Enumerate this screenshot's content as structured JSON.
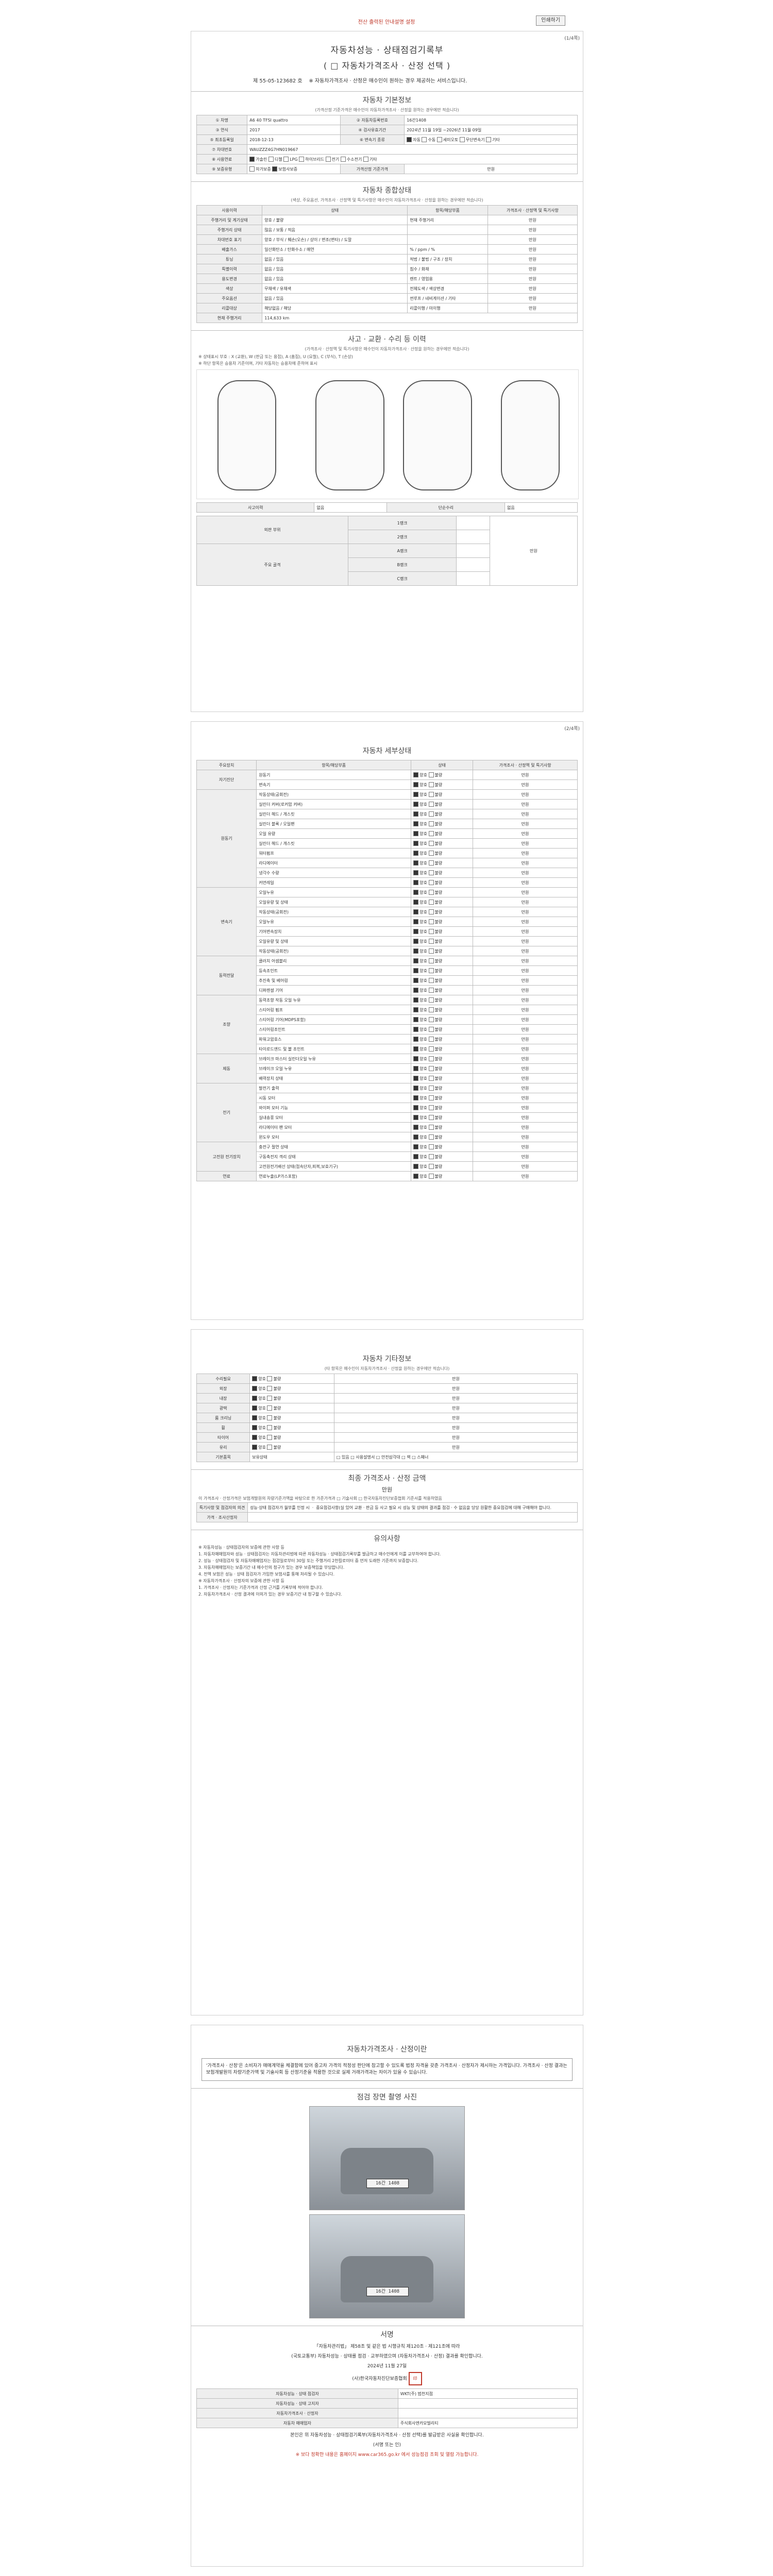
{
  "top": {
    "notice": "전산 출력된 안내설명 설정",
    "print_label": "인쇄하기",
    "page1": "(1/4쪽)",
    "page2": "(2/4쪽)"
  },
  "doc": {
    "title_main": "자동차성능 · 상태점검기록부",
    "title_sub": "( □ 자동차가격조사 · 산정 선택 )",
    "doc_no_label": "제",
    "doc_no": "55-05-123682",
    "doc_no_suffix": "호",
    "doc_note": "※ 자동차가격조사 · 산정은 매수인이 원하는 경우 제공하는 서비스입니다."
  },
  "basic": {
    "title": "자동차 기본정보",
    "note": "(가격산정 기준가격은 매수인이 자동차가격조사 · 산정을 원하는 경우에만 적습니다)",
    "car_name_label": "① 차명",
    "car_name": "A6 40 TFSI quattro",
    "reg_no_label": "② 자동차등록번호",
    "reg_no": "16간1408",
    "year_label": "③ 연식",
    "year": "2017",
    "inspect_label": "④ 검사유효기간",
    "inspect": "2024년 11월 19일 ~2026년 11월 09일",
    "first_reg_label": "⑤ 최초등록일",
    "first_reg": "2018-12-13",
    "trans_label": "⑥ 변속기 종류",
    "trans_options": [
      "자동",
      "수동",
      "세미오토",
      "무단변속기",
      "기타"
    ],
    "vin_label": "⑦ 차대번호",
    "vin": "WAUZZZ4G7HN019667",
    "fuel_label": "⑧ 사용연료",
    "fuel_options": [
      "가솔린",
      "디젤",
      "LPG",
      "하이브리드",
      "전기",
      "수소전기",
      "기타"
    ],
    "warranty_label": "⑨ 보증유형",
    "warranty_options": [
      "자가보증",
      "보험사보증"
    ],
    "price_label": "가격산정 기준가격",
    "price_unit": "만원"
  },
  "overall": {
    "title": "자동차 종합상태",
    "note": "(색상, 주요옵션, 가격조사 · 산정액 및 특기사항은 매수인이 자동차가격조사 · 산정을 원하는 경우에만 적습니다)",
    "col1": "사용이력",
    "col2": "상태",
    "col3": "항목/해당부품",
    "col4": "가격조사 · 산정액 및 특기사항",
    "odometer": "114,633",
    "odometer_unit": "km",
    "rows": [
      {
        "name": "주행거리 및 계기상태",
        "state": "양호 / 불량",
        "item": "현재 주행거리",
        "unit": "만원"
      },
      {
        "name": "주행거리 상태",
        "state": "많음 / 보통 / 적음",
        "item": "",
        "unit": "만원"
      },
      {
        "name": "차대번호 표기",
        "state": "양호 / 부식 / 훼손(오손) / 상이 / 변조(변타) / 도말",
        "item": "",
        "unit": "만원"
      },
      {
        "name": "배출가스",
        "state": "일산화탄소 / 탄화수소 / 매연",
        "item": "% / ppm / %",
        "unit": "만원"
      },
      {
        "name": "튜닝",
        "state": "없음 / 있음",
        "item": "적법 / 불법 / 구조 / 장치",
        "unit": "만원"
      },
      {
        "name": "특별이력",
        "state": "없음 / 있음",
        "item": "침수 / 화재",
        "unit": "만원"
      },
      {
        "name": "용도변경",
        "state": "없음 / 있음",
        "item": "렌트 / 영업용",
        "unit": "만원"
      },
      {
        "name": "색상",
        "state": "무채색 / 유채색",
        "item": "전체도색 / 색상변경",
        "unit": "만원"
      },
      {
        "name": "주요옵션",
        "state": "없음 / 있음",
        "item": "썬루프 / 네비게이션 / 기타",
        "unit": "만원"
      },
      {
        "name": "리콜대상",
        "state": "해당없음 / 해당",
        "item": "리콜이행 / 미이행",
        "unit": "만원"
      }
    ]
  },
  "accident": {
    "title": "사고 · 교환 · 수리 등 이력",
    "note": "(가격조사 · 산정액 및 특기사항은 매수인이 자동차가격조사 · 산정을 원하는 경우에만 적습니다)",
    "legend": "※ 상태표시 부호 : X (교환), W (판금 또는 용접), A (흠집), U (요철), C (부식), T (손상)",
    "legend2": "※ 하단 항목은 승용차 기준이며, 기타 자동차는 승용차에 준하여 표시",
    "accident_label": "사고이력",
    "accident_value": "없음",
    "simple_label": "단순수리",
    "simple_value": "없음",
    "rank1": "1랭크",
    "rank2": "2랭크",
    "rankA": "A랭크",
    "rankB": "B랭크",
    "rankC": "C랭크",
    "outer_label": "외판 부위",
    "main_label": "주요 골격",
    "price_unit": "만원"
  },
  "detail": {
    "title": "자동차 세부상태",
    "col1": "주요장치",
    "col2": "항목/해당부품",
    "col3": "상태",
    "col4": "가격조사 · 산정액 및 특기사항",
    "groups": [
      {
        "name": "자기진단",
        "items": [
          "원동기",
          "변속기"
        ]
      },
      {
        "name": "원동기",
        "items": [
          "작동상태(공회전)",
          "실린더 커버(로커암 커버)",
          "실린더 헤드 / 개스킷",
          "실린더 블록 / 오일팬",
          "오일 유량",
          "실린더 헤드 / 개스킷",
          "워터펌프",
          "라디에이터",
          "냉각수 수량",
          "커먼레일"
        ]
      },
      {
        "name": "변속기",
        "items": [
          "오일누유",
          "오일유량 및 상태",
          "작동상태(공회전)",
          "오일누유",
          "기어변속장치",
          "오일유량 및 상태",
          "작동상태(공회전)"
        ]
      },
      {
        "name": "동력전달",
        "items": [
          "클러치 어셈블리",
          "등속조인트",
          "추진축 및 베어링",
          "디퍼렌셜 기어"
        ]
      },
      {
        "name": "조향",
        "items": [
          "동력조향 작동 오일 누유",
          "스티어링 펌프",
          "스티어링 기어(MDPS포함)",
          "스티어링조인트",
          "파워고압호스",
          "타이로드엔드 및 볼 조인트"
        ]
      },
      {
        "name": "제동",
        "items": [
          "브레이크 마스터 실린더오일 누유",
          "브레이크 오일 누유",
          "배력장치 상태"
        ]
      },
      {
        "name": "전기",
        "items": [
          "발전기 출력",
          "시동 모터",
          "와이퍼 모터 기능",
          "실내송풍 모터",
          "라디에이터 팬 모터",
          "윈도우 모터"
        ]
      },
      {
        "name": "고전원 전기장치",
        "items": [
          "충전구 절연 상태",
          "구동축전지 격리 상태",
          "고전원전기배선 상태(접속단자,피복,보호기구)"
        ]
      },
      {
        "name": "연료",
        "items": [
          "연료누출(LP가스포함)"
        ]
      }
    ],
    "state_good": "양호",
    "state_bad": "불량",
    "state_none": "없음",
    "state_leak_small": "미세누유",
    "state_leak": "누유",
    "state_ok": "적정",
    "state_low": "부족",
    "unit": "만원"
  },
  "etc": {
    "title": "자동차 기타정보",
    "note": "(타 항목은 매수인이 자동차가격조사 · 산정을 원하는 경우에만 적습니다)",
    "rows": [
      "수리필요",
      "외장",
      "내장",
      "광택",
      "룸 크리닝",
      "휠",
      "타이어",
      "유리"
    ],
    "basic_items_label": "기본품목",
    "basic_items_value": "보유상태",
    "basic_items_list": "□ 있음 □ 사용설명서 □ 안전삼각대 □ 잭 □ 스패너"
  },
  "final": {
    "title": "최종 가격조사 · 산정 금액",
    "unit": "만원",
    "note": "이 가격조사 · 산정가격은 보험개발원의 차량기준가액을 바탕으로 한 가준가격과 □ 기술사회 □ 한국자동차진단보증협회 기준서를 적용하였음",
    "opinion_label": "특기사항 및 점검자의 의견",
    "opinion_text": "성능·상태 점검자가 월부를 인정 시 ㆍ 중요점검사항(실 있어 교환 · 판금 등 사고 필요 시 성능 및 상태의 결과를 점검 · 수 없음을 당당 원활한 중요점검에 대해 구매해야 합니다.",
    "price_label": "가격 · 조사산정자"
  },
  "notes": {
    "title": "유의사항",
    "lines": [
      "※ 자동차성능 · 상태점검자의 보증에 관한 사항 등",
      "1. 자동차매매업자와 성능 · 상태점검자는 자동차관리법에 따른 자동차성능 · 상태점검기록부를 발급하고 매수인에게 이를 교부하여야 합니다.",
      "2. 성능 · 상태점검자 및 자동차매매업자는 점검일로부터 30일 또는 주행거리 2천킬로미터 중 먼저 도래한 기준까지 보증합니다.",
      "3. 자동차매매업자는 보증기간 내 매수인의 청구가 있는 경우 보증책임을 부담합니다.",
      "4. 전액 보험은 성능 · 상태 점검자가 가입한 보험사를 통해 처리될 수 있습니다.",
      "※ 자동차가격조사 · 산정자의 보증에 관한 사항 등",
      "1. 가격조사 · 산정자는 기준가격과 산정 근거를 기록부에 적어야 합니다.",
      "2. 자동차가격조사 · 산정 결과에 이의가 있는 경우 보증기간 내 청구할 수 있습니다."
    ]
  },
  "guide": {
    "title": "자동차가격조사 · 산정이란",
    "text": "'가격조사 · 산정'은 소비자가 매매계약을 체결함에 있어 중고차 가격의 적정성 판단에 참고할 수 있도록 법정 자격을 갖춘 가격조사 · 산정자가 제시하는 가격입니다. 가격조사 · 산정 결과는 보험개발원의 차량기준가액 및 기술사회 등 산정기준을 적용한 것으로 실제 거래가격과는 차이가 있을 수 있습니다."
  },
  "photos": {
    "title": "점검 장면 촬영 사진",
    "plate": "16간 1408"
  },
  "signature": {
    "title": "서명",
    "law_text": "「자동차관리법」 제58조 및 같은 법 시행규칙 제120조 · 제121조에 따라",
    "law_text2": "(국토교통부) 자동차성능 · 상태를 점검 · 교부하였으며 (자동차가격조사 · 산정) 결과를 확인합니다.",
    "date": "2024년 11월 27일",
    "company": "(사)한국자동차진단보증협회",
    "inspector_label": "자동차성능 · 상태 점검자",
    "inspector_name": "WKT(주) 범천지점",
    "notifier_label": "자동차성능 · 상태 고지자",
    "seller_label": "자동차가격조사 · 산정자",
    "receiver_label": "자동차 매매업자",
    "receiver_name": "주식회사엔카모빌리티",
    "footer_text": "본인은 위 자동차성능 · 상태점검기록부(자동차가격조사 · 산정 선택)를 발급받은 사실을 확인합니다.",
    "footer_sub": "(서명 또는 인)",
    "bottom_note": "※ 보다 정확한 내용은 홈페이지 www.car365.go.kr 에서 성능점검 조회 및 열람 가능합니다."
  }
}
